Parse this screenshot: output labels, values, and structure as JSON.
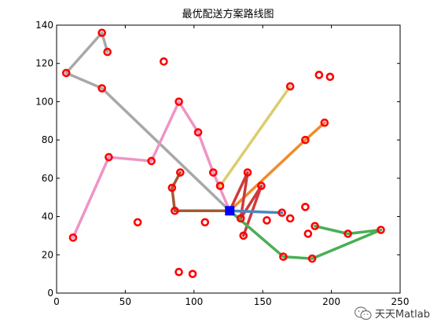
{
  "chart_data": {
    "type": "line",
    "title": "最优配送方案路线图",
    "xlabel": "",
    "ylabel": "",
    "xlim": [
      0,
      250
    ],
    "ylim": [
      0,
      140
    ],
    "xticks": [
      0,
      50,
      100,
      150,
      200,
      250
    ],
    "yticks": [
      0,
      20,
      40,
      60,
      80,
      100,
      120,
      140
    ],
    "grid": false,
    "depot": {
      "x": 126,
      "y": 43,
      "color": "#0000ff"
    },
    "customers": [
      [
        7,
        115
      ],
      [
        33,
        136
      ],
      [
        37,
        126
      ],
      [
        33,
        107
      ],
      [
        78,
        121
      ],
      [
        89,
        100
      ],
      [
        103,
        84
      ],
      [
        114,
        63
      ],
      [
        119,
        56
      ],
      [
        69,
        69
      ],
      [
        38,
        71
      ],
      [
        12,
        29
      ],
      [
        90,
        63
      ],
      [
        84,
        55
      ],
      [
        86,
        43
      ],
      [
        108,
        37
      ],
      [
        59,
        37
      ],
      [
        89,
        11
      ],
      [
        99,
        10
      ],
      [
        136,
        30
      ],
      [
        134,
        39
      ],
      [
        139,
        63
      ],
      [
        149,
        56
      ],
      [
        153,
        38
      ],
      [
        164,
        42
      ],
      [
        170,
        39
      ],
      [
        181,
        45
      ],
      [
        183,
        31
      ],
      [
        188,
        35
      ],
      [
        165,
        19
      ],
      [
        186,
        18
      ],
      [
        212,
        31
      ],
      [
        236,
        33
      ],
      [
        170,
        108
      ],
      [
        181,
        80
      ],
      [
        195,
        89
      ],
      [
        191,
        114
      ],
      [
        199,
        113
      ]
    ],
    "series": [
      {
        "color": "#a8a8a8",
        "points": [
          [
            126,
            43
          ],
          [
            33,
            107
          ],
          [
            7,
            115
          ],
          [
            33,
            136
          ],
          [
            37,
            126
          ]
        ]
      },
      {
        "color": "#ee94c6",
        "points": [
          [
            126,
            43
          ],
          [
            114,
            63
          ],
          [
            103,
            84
          ],
          [
            89,
            100
          ],
          [
            69,
            69
          ],
          [
            38,
            71
          ],
          [
            12,
            29
          ]
        ]
      },
      {
        "color": "#a55a35",
        "points": [
          [
            126,
            43
          ],
          [
            86,
            43
          ],
          [
            84,
            55
          ],
          [
            90,
            63
          ]
        ]
      },
      {
        "color": "#dccd6e",
        "points": [
          [
            119,
            56
          ],
          [
            170,
            108
          ]
        ]
      },
      {
        "color": "#f28a2a",
        "points": [
          [
            126,
            43
          ],
          [
            181,
            80
          ],
          [
            195,
            89
          ]
        ]
      },
      {
        "color": "#cf3a3a",
        "points": [
          [
            126,
            43
          ],
          [
            139,
            63
          ],
          [
            134,
            39
          ],
          [
            149,
            56
          ],
          [
            136,
            30
          ]
        ]
      },
      {
        "color": "#4a86c1",
        "points": [
          [
            126,
            43
          ],
          [
            164,
            42
          ]
        ]
      },
      {
        "color": "#4aaf56",
        "points": [
          [
            126,
            43
          ],
          [
            165,
            19
          ],
          [
            186,
            18
          ],
          [
            236,
            33
          ],
          [
            212,
            31
          ],
          [
            188,
            35
          ]
        ]
      }
    ]
  },
  "watermark": {
    "text": "天天Matlab",
    "icon": "wechat-icon"
  }
}
